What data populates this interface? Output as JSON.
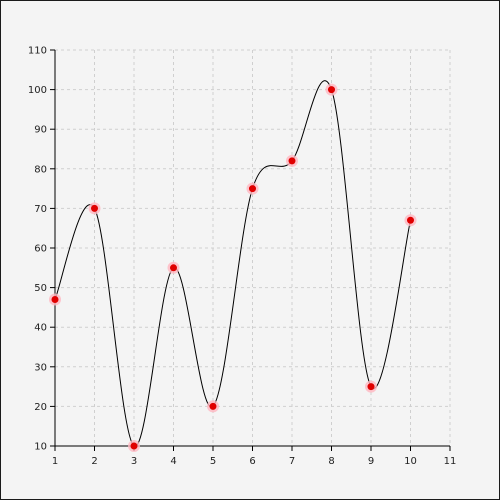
{
  "chart_data": {
    "type": "line",
    "title": "",
    "xlabel": "",
    "ylabel": "",
    "xlim": [
      1,
      11
    ],
    "ylim": [
      10,
      110
    ],
    "x_ticks": [
      "1",
      "2",
      "3",
      "4",
      "5",
      "6",
      "7",
      "8",
      "9",
      "10",
      "11"
    ],
    "y_ticks": [
      "10",
      "20",
      "30",
      "40",
      "50",
      "60",
      "70",
      "80",
      "90",
      "100",
      "110"
    ],
    "grid": true,
    "smooth": true,
    "line_color": "#000000",
    "point_color": "#e00000",
    "halo_color": "#ffb6c1",
    "series": [
      {
        "x": [
          1,
          2,
          3,
          4,
          5,
          6,
          7,
          8,
          9,
          10
        ],
        "y": [
          47,
          70,
          10,
          55,
          20,
          75,
          82,
          100,
          25,
          67
        ]
      }
    ]
  }
}
